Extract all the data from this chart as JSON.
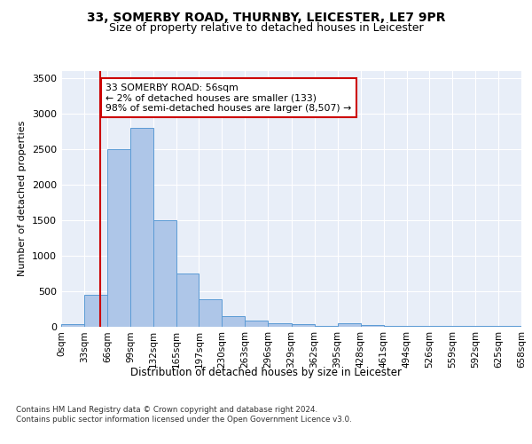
{
  "title_line1": "33, SOMERBY ROAD, THURNBY, LEICESTER, LE7 9PR",
  "title_line2": "Size of property relative to detached houses in Leicester",
  "xlabel": "Distribution of detached houses by size in Leicester",
  "ylabel": "Number of detached properties",
  "bin_edges": [
    0,
    33,
    66,
    99,
    132,
    165,
    197,
    230,
    263,
    296,
    329,
    362,
    395,
    428,
    461,
    494,
    526,
    559,
    592,
    625,
    658
  ],
  "bar_heights": [
    30,
    450,
    2500,
    2800,
    1500,
    750,
    380,
    150,
    80,
    50,
    30,
    5,
    50,
    20,
    5,
    2,
    2,
    2,
    2,
    2
  ],
  "bar_color": "#aec6e8",
  "bar_edge_color": "#5b9bd5",
  "property_line_x": 56,
  "property_line_color": "#cc0000",
  "annotation_text": "33 SOMERBY ROAD: 56sqm\n← 2% of detached houses are smaller (133)\n98% of semi-detached houses are larger (8,507) →",
  "annotation_box_color": "#cc0000",
  "ylim": [
    0,
    3600
  ],
  "yticks": [
    0,
    500,
    1000,
    1500,
    2000,
    2500,
    3000,
    3500
  ],
  "background_color": "#e8eef8",
  "grid_color": "#ffffff",
  "footnote": "Contains HM Land Registry data © Crown copyright and database right 2024.\nContains public sector information licensed under the Open Government Licence v3.0."
}
